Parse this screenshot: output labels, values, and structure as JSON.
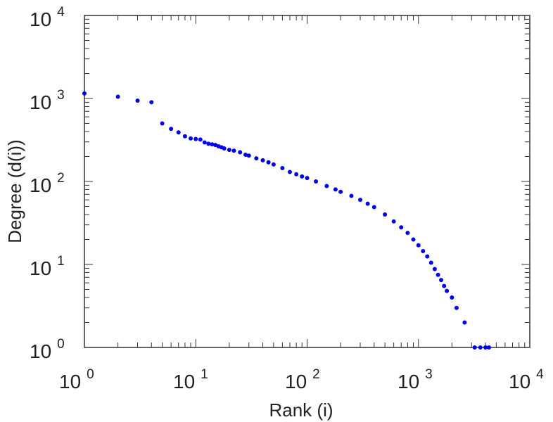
{
  "chart_data": {
    "type": "scatter",
    "title": "",
    "xlabel": "Rank (i)",
    "ylabel": "Degree (d(i))",
    "x_scale": "log",
    "y_scale": "log",
    "xlim": [
      1,
      10000
    ],
    "ylim": [
      1,
      10000
    ],
    "grid": false,
    "marker_color": "#0000ee",
    "x_ticks": [
      {
        "base": "10",
        "exp": "0"
      },
      {
        "base": "10",
        "exp": "1"
      },
      {
        "base": "10",
        "exp": "2"
      },
      {
        "base": "10",
        "exp": "3"
      },
      {
        "base": "10",
        "exp": "4"
      }
    ],
    "y_ticks": [
      {
        "base": "10",
        "exp": "0"
      },
      {
        "base": "10",
        "exp": "1"
      },
      {
        "base": "10",
        "exp": "2"
      },
      {
        "base": "10",
        "exp": "3"
      },
      {
        "base": "10",
        "exp": "4"
      }
    ],
    "points": [
      [
        1,
        1150
      ],
      [
        2,
        1050
      ],
      [
        3,
        940
      ],
      [
        4,
        900
      ],
      [
        5,
        500
      ],
      [
        6,
        430
      ],
      [
        7,
        390
      ],
      [
        8,
        350
      ],
      [
        9,
        330
      ],
      [
        10,
        325
      ],
      [
        11,
        320
      ],
      [
        12,
        295
      ],
      [
        13,
        285
      ],
      [
        14,
        280
      ],
      [
        15,
        275
      ],
      [
        16,
        265
      ],
      [
        17,
        258
      ],
      [
        18,
        250
      ],
      [
        20,
        240
      ],
      [
        22,
        235
      ],
      [
        25,
        225
      ],
      [
        28,
        210
      ],
      [
        30,
        205
      ],
      [
        35,
        190
      ],
      [
        40,
        180
      ],
      [
        45,
        170
      ],
      [
        50,
        160
      ],
      [
        60,
        145
      ],
      [
        70,
        130
      ],
      [
        80,
        122
      ],
      [
        90,
        115
      ],
      [
        100,
        110
      ],
      [
        120,
        100
      ],
      [
        150,
        88
      ],
      [
        180,
        80
      ],
      [
        200,
        75
      ],
      [
        250,
        67
      ],
      [
        300,
        60
      ],
      [
        350,
        54
      ],
      [
        400,
        49
      ],
      [
        500,
        40
      ],
      [
        600,
        33
      ],
      [
        700,
        28
      ],
      [
        800,
        24
      ],
      [
        900,
        20
      ],
      [
        1000,
        17
      ],
      [
        1100,
        14.5
      ],
      [
        1200,
        12.5
      ],
      [
        1300,
        10.5
      ],
      [
        1400,
        8.8
      ],
      [
        1500,
        7.5
      ],
      [
        1600,
        6.5
      ],
      [
        1700,
        5.5
      ],
      [
        1800,
        4.8
      ],
      [
        2000,
        4
      ],
      [
        2200,
        3
      ],
      [
        2600,
        2
      ],
      [
        3200,
        1
      ],
      [
        3600,
        1
      ],
      [
        4000,
        1
      ],
      [
        4300,
        1
      ]
    ]
  }
}
